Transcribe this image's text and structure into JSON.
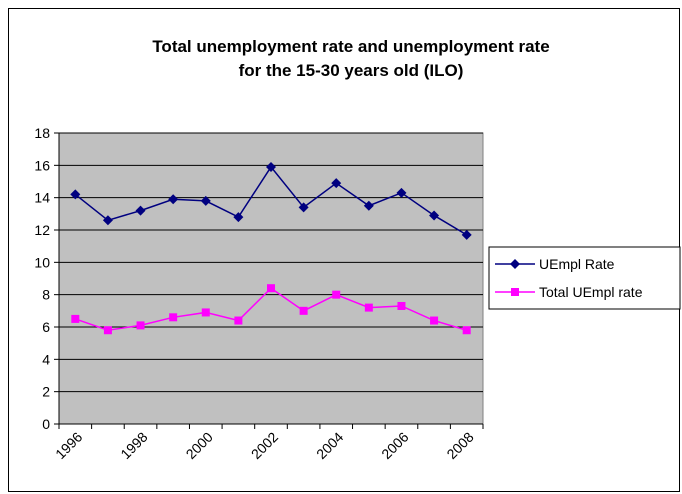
{
  "chart_data": {
    "type": "line",
    "title_lines": [
      "Total unemployment rate and unemployment rate",
      "for the 15-30 years old (ILO)"
    ],
    "x": [
      1996,
      1997,
      1998,
      1999,
      2000,
      2001,
      2002,
      2003,
      2004,
      2005,
      2006,
      2007,
      2008
    ],
    "x_tick_labels": [
      "1996",
      "1998",
      "2000",
      "2002",
      "2004",
      "2006",
      "2008"
    ],
    "y_ticks": [
      0,
      2,
      4,
      6,
      8,
      10,
      12,
      14,
      16,
      18
    ],
    "ylim": [
      0,
      18
    ],
    "grid": true,
    "plot_background": "#c0c0c0",
    "legend_position": "right",
    "series": [
      {
        "name": "UEmpl Rate",
        "color": "#000080",
        "marker": "diamond",
        "values": [
          14.2,
          12.6,
          13.2,
          13.9,
          13.8,
          12.8,
          15.9,
          13.4,
          14.9,
          13.5,
          14.3,
          12.9,
          11.7
        ]
      },
      {
        "name": "Total UEmpl rate",
        "color": "#ff00ff",
        "marker": "square",
        "values": [
          6.5,
          5.8,
          6.1,
          6.6,
          6.9,
          6.4,
          8.4,
          7.0,
          8.0,
          7.2,
          7.3,
          6.4,
          5.8
        ]
      }
    ]
  }
}
